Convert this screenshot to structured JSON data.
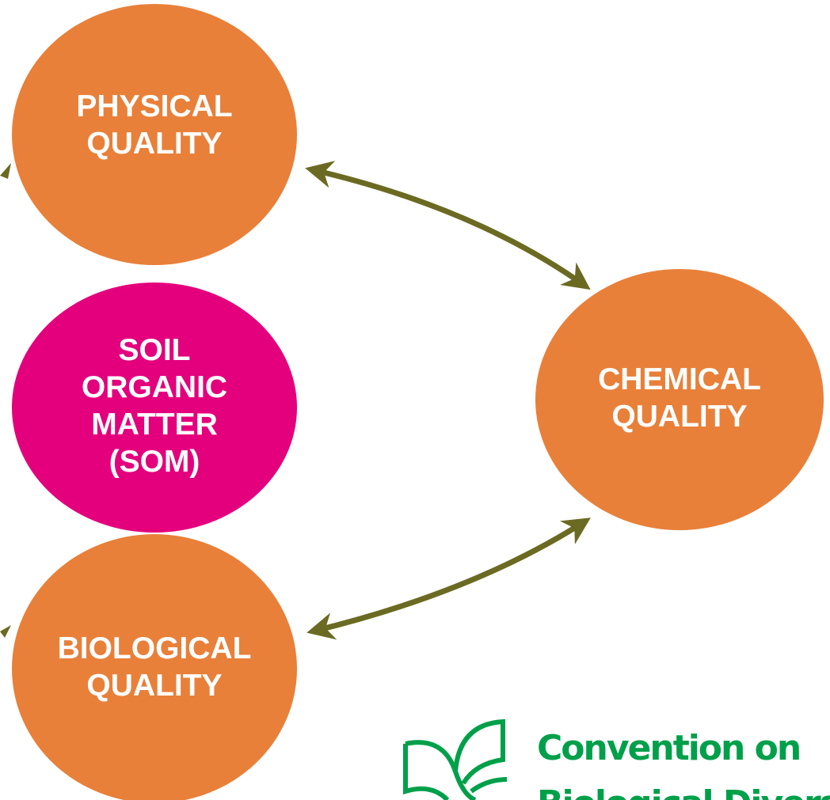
{
  "nodes": [
    {
      "id": "physical",
      "lines": [
        "PHYSICAL",
        "QUALITY"
      ]
    },
    {
      "id": "som",
      "lines": [
        "SOIL",
        "ORGANIC",
        "MATTER",
        "(SOM)"
      ]
    },
    {
      "id": "chemical",
      "lines": [
        "CHEMICAL",
        "QUALITY"
      ]
    },
    {
      "id": "biological",
      "lines": [
        "BIOLOGICAL",
        "QUALITY"
      ]
    }
  ],
  "logo": {
    "lines": [
      "Convention on",
      "Biological Diversity"
    ]
  }
}
